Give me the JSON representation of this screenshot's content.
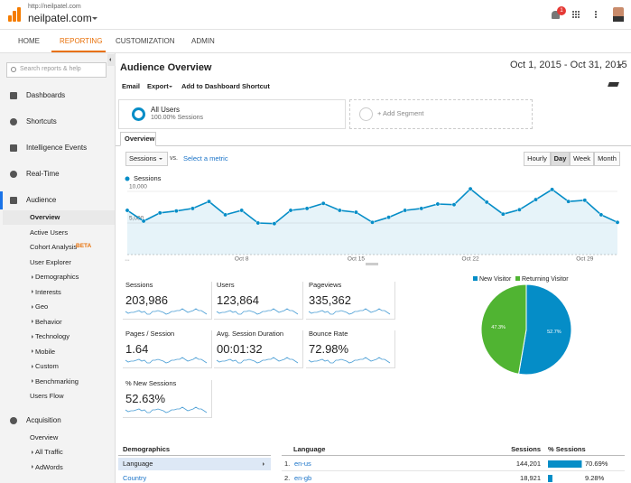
{
  "header": {
    "url": "http://neilpatel.com",
    "site": "neilpatel.com",
    "notifications": "1"
  },
  "nav": {
    "tabs": [
      "HOME",
      "REPORTING",
      "CUSTOMIZATION",
      "ADMIN"
    ],
    "active": 1
  },
  "sidebar": {
    "search": "Search reports & help",
    "sections": [
      {
        "label": "Dashboards"
      },
      {
        "label": "Shortcuts"
      },
      {
        "label": "Intelligence Events"
      },
      {
        "label": "Real-Time"
      },
      {
        "label": "Audience",
        "active": true,
        "children": [
          {
            "label": "Overview",
            "active": true
          },
          {
            "label": "Active Users"
          },
          {
            "label": "Cohort Analysis",
            "badge": "BETA"
          },
          {
            "label": "User Explorer"
          },
          {
            "label": "Demographics",
            "collapsed": true
          },
          {
            "label": "Interests",
            "collapsed": true
          },
          {
            "label": "Geo",
            "collapsed": true
          },
          {
            "label": "Behavior",
            "collapsed": true
          },
          {
            "label": "Technology",
            "collapsed": true
          },
          {
            "label": "Mobile",
            "collapsed": true
          },
          {
            "label": "Custom",
            "collapsed": true
          },
          {
            "label": "Benchmarking",
            "collapsed": true
          },
          {
            "label": "Users Flow"
          }
        ]
      },
      {
        "label": "Acquisition",
        "children": [
          {
            "label": "Overview"
          },
          {
            "label": "All Traffic",
            "collapsed": true
          },
          {
            "label": "AdWords",
            "collapsed": true
          }
        ]
      }
    ]
  },
  "report": {
    "title": "Audience Overview",
    "date_range": "Oct 1, 2015 - Oct 31, 2015",
    "toolbar": [
      "Email",
      "Export",
      "Add to Dashboard",
      "Shortcut"
    ],
    "segment": {
      "name": "All Users",
      "share": "100.00% Sessions",
      "add": "+ Add Segment"
    },
    "tab": "Overview",
    "metric_select": "Sessions",
    "vs": "vs.",
    "select_metric": "Select a metric",
    "granularity": [
      "Hourly",
      "Day",
      "Week",
      "Month"
    ],
    "active_granularity": 1,
    "metrics": [
      {
        "label": "Sessions",
        "value": "203,986"
      },
      {
        "label": "Users",
        "value": "123,864"
      },
      {
        "label": "Pageviews",
        "value": "335,362"
      },
      {
        "label": "Pages / Session",
        "value": "1.64"
      },
      {
        "label": "Avg. Session Duration",
        "value": "00:01:32"
      },
      {
        "label": "Bounce Rate",
        "value": "72.98%"
      },
      {
        "label": "% New Sessions",
        "value": "52.63%"
      }
    ]
  },
  "chart_data": [
    {
      "type": "line",
      "categories": [
        "...",
        null,
        null,
        null,
        null,
        null,
        null,
        "Oct 8",
        null,
        null,
        null,
        null,
        null,
        null,
        "Oct 15",
        null,
        null,
        null,
        null,
        null,
        null,
        "Oct 22",
        null,
        null,
        null,
        null,
        null,
        null,
        "Oct 29",
        null,
        null
      ],
      "series": [
        {
          "name": "Sessions",
          "color": "#058dc7",
          "values": [
            7000,
            5300,
            6600,
            6900,
            7300,
            8400,
            6300,
            7000,
            5000,
            4900,
            7000,
            7300,
            8100,
            7000,
            6700,
            5100,
            5900,
            7000,
            7300,
            8000,
            7900,
            10400,
            8300,
            6400,
            7100,
            8700,
            10300,
            8400,
            8600,
            6300,
            5100
          ]
        }
      ],
      "ylim": [
        0,
        11000
      ],
      "yticks": [
        {
          "value": 5000,
          "label": "5,000"
        },
        {
          "value": 10000,
          "label": "10,000"
        }
      ],
      "grid": true
    },
    {
      "type": "pie",
      "categories": [
        "New Visitor",
        "Returning Visitor"
      ],
      "values": [
        52.7,
        47.3
      ],
      "value_labels": [
        "52.7%",
        "47.3%"
      ],
      "colors": [
        "#058dc7",
        "#50b432"
      ]
    }
  ],
  "demographics": {
    "title": "Demographics",
    "rows": [
      "Language",
      "Country"
    ],
    "active": 0
  },
  "language_table": {
    "columns": [
      "Language",
      "Sessions",
      "% Sessions"
    ],
    "rows": [
      {
        "rank": "1.",
        "name": "en-us",
        "sessions": "144,201"
      },
      {
        "rank": "2.",
        "name": "en-gb",
        "sessions": "18,921"
      }
    ],
    "percent": {
      "values": [
        70.69,
        9.28
      ],
      "value_labels": [
        "70.69%",
        "9.28%"
      ],
      "color": "#058dc7"
    }
  }
}
